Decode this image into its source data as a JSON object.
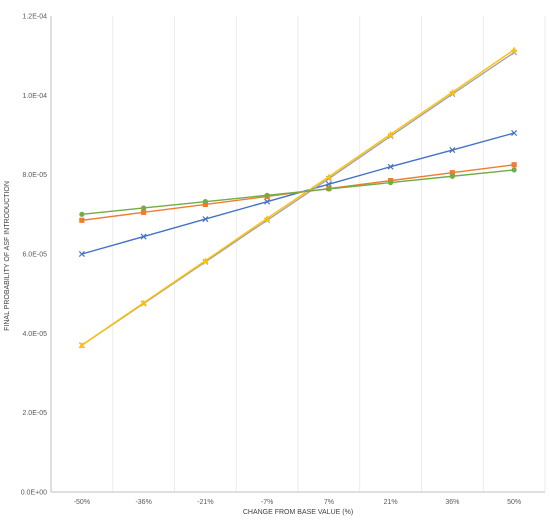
{
  "chart_data": {
    "type": "line",
    "xlabel": "CHANGE FROM BASE VALUE (%)",
    "ylabel": "FINAL PROBABILITY OF ASF INTRODUCTION",
    "categories": [
      "-50%",
      "-36%",
      "-21%",
      "-7%",
      "7%",
      "21%",
      "36%",
      "50%"
    ],
    "y_tick_labels": [
      "0.0E+00",
      "2.0E-05",
      "4.0E-05",
      "6.0E-05",
      "8.0E-05",
      "1.0E-04",
      "1.2E-04"
    ],
    "ylim": [
      0,
      0.00012
    ],
    "grid": "vertical",
    "legend": "none",
    "series": [
      {
        "color": "#4472c4",
        "marker": "x",
        "values": [
          6e-05,
          6.44e-05,
          6.88e-05,
          7.32e-05,
          7.76e-05,
          8.2e-05,
          8.62e-05,
          9.05e-05
        ]
      },
      {
        "color": "#a5a5a5",
        "marker": "x",
        "values": [
          3.7e-05,
          4.75e-05,
          5.8e-05,
          6.85e-05,
          7.9e-05,
          8.97e-05,
          0.0001003,
          0.0001108
        ]
      },
      {
        "color": "#ed7d31",
        "marker": "square",
        "values": [
          6.85e-05,
          7.05e-05,
          7.25e-05,
          7.45e-05,
          7.65e-05,
          7.85e-05,
          8.05e-05,
          8.25e-05
        ]
      },
      {
        "color": "#ffc000",
        "marker": "triangle",
        "values": [
          3.7e-05,
          4.77e-05,
          5.83e-05,
          6.9e-05,
          7.95e-05,
          9.02e-05,
          0.0001008,
          0.0001115
        ]
      },
      {
        "color": "#70ad47",
        "marker": "circle",
        "values": [
          7e-05,
          7.16e-05,
          7.32e-05,
          7.48e-05,
          7.64e-05,
          7.8e-05,
          7.96e-05,
          8.12e-05
        ]
      }
    ]
  }
}
